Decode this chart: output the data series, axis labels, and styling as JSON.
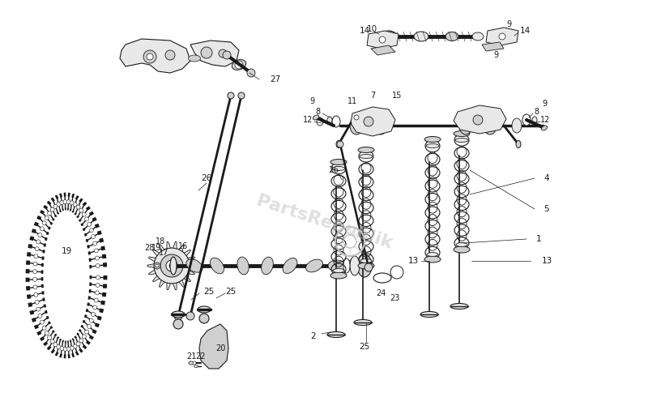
{
  "bg_color": "#ffffff",
  "lc": "#1a1a1a",
  "gray_light": "#e8e8e8",
  "gray_mid": "#d0d0d0",
  "gray_dark": "#b0b0b0",
  "wm_color": "#c0c0c0",
  "wm_alpha": 0.5,
  "fig_w": 8.0,
  "fig_h": 4.9,
  "dpi": 100
}
